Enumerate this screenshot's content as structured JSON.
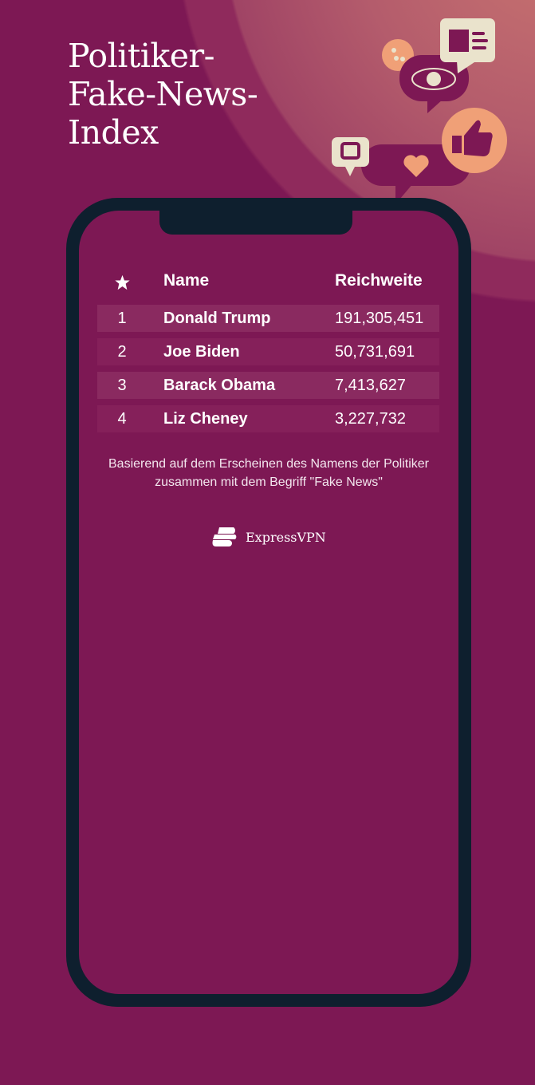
{
  "title": "Politiker-\nFake-News-\nIndex",
  "table": {
    "headers": {
      "rank_icon": "star-icon",
      "name": "Name",
      "reach": "Reichweite"
    },
    "rows": [
      {
        "rank": "1",
        "name": "Donald Trump",
        "reach": "191,305,451"
      },
      {
        "rank": "2",
        "name": "Joe Biden",
        "reach": "50,731,691"
      },
      {
        "rank": "3",
        "name": "Barack Obama",
        "reach": "7,413,627"
      },
      {
        "rank": "4",
        "name": "Liz Cheney",
        "reach": "3,227,732"
      }
    ]
  },
  "note": "Basierend auf dem Erscheinen des Namens der Politiker zusammen mit dem Begriff \"Fake News\"",
  "brand": "ExpressVPN",
  "colors": {
    "background": "#7D1854",
    "phone": "#0E1F2E",
    "accent": "#F0A077",
    "cream": "#EAE3CC"
  }
}
